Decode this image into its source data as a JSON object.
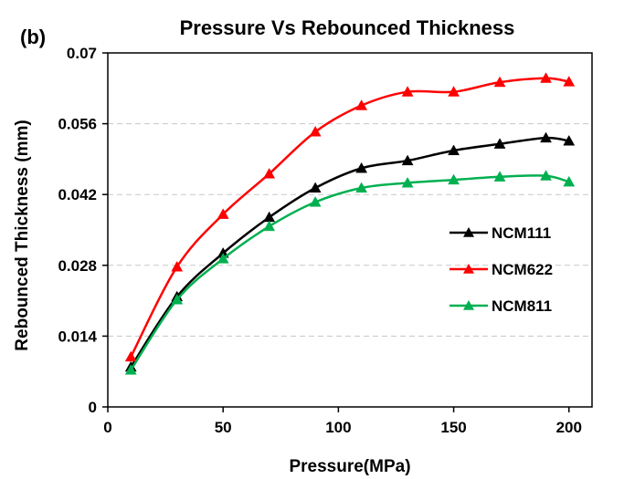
{
  "chart_data": {
    "type": "line",
    "panel_label": "(b)",
    "title": "Pressure Vs Rebounced Thickness",
    "xlabel": "Pressure(MPa)",
    "ylabel": "Rebounced Thickness  (mm)",
    "xlim": [
      0,
      210
    ],
    "ylim": [
      0,
      0.07
    ],
    "x_ticks": [
      0,
      50,
      100,
      150,
      200
    ],
    "x_tick_labels": [
      "0",
      "50",
      "100",
      "150",
      "200"
    ],
    "y_ticks": [
      0,
      0.014,
      0.028,
      0.042,
      0.056,
      0.07
    ],
    "y_tick_labels": [
      "0",
      "0.014",
      "0.028",
      "0.042",
      "0.056",
      "0.07"
    ],
    "grid": "horizontal-dashed",
    "legend_position": "right",
    "x": [
      10,
      30,
      50,
      70,
      90,
      110,
      130,
      150,
      170,
      190,
      200
    ],
    "series": [
      {
        "name": "NCM111",
        "color": "#000000",
        "marker": "triangle",
        "values": [
          0.0079,
          0.0218,
          0.0304,
          0.0375,
          0.0433,
          0.0472,
          0.0487,
          0.0507,
          0.052,
          0.0532,
          0.0526
        ]
      },
      {
        "name": "NCM622",
        "color": "#ff0000",
        "marker": "triangle",
        "values": [
          0.0099,
          0.0277,
          0.0381,
          0.0461,
          0.0544,
          0.0596,
          0.0623,
          0.0623,
          0.0642,
          0.065,
          0.0643
        ]
      },
      {
        "name": "NCM811",
        "color": "#00b050",
        "marker": "triangle",
        "values": [
          0.0073,
          0.0212,
          0.0293,
          0.0357,
          0.0405,
          0.0433,
          0.0443,
          0.0449,
          0.0455,
          0.0457,
          0.0445
        ]
      }
    ]
  }
}
